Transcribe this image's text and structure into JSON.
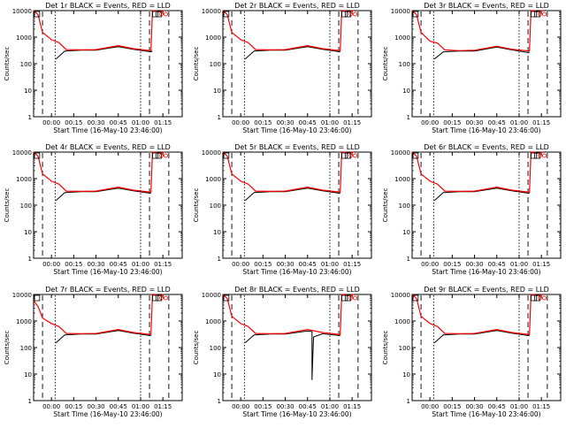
{
  "figure": {
    "shared": {
      "title_suffix": "BLACK = Events, RED = LLD",
      "xlabel": "Start Time (16-May-10 23:46:00)",
      "ylabel": "Counts/sec",
      "x_tick_labels": [
        "00:00",
        "00:15",
        "00:30",
        "00:45",
        "01:00",
        "01:15"
      ],
      "y_tick_labels": [
        "1",
        "10",
        "100",
        "1000",
        "10000"
      ]
    }
  },
  "chart_data": [
    {
      "type": "line",
      "title": "Det 1r BLACK = Events, RED = LLD",
      "xlabel": "Start Time (16-May-10 23:46:00)",
      "ylabel": "Counts/sec",
      "yscale": "log",
      "ylim": [
        1,
        10000
      ],
      "xlim_minutes": [
        -12,
        88
      ],
      "series": [
        {
          "name": "Events",
          "color": "#000000",
          "x": [
            -8,
            3,
            3,
            9,
            9,
            20,
            30,
            45,
            55,
            67,
            68,
            70
          ],
          "y": [
            null,
            150,
            150,
            300,
            300,
            320,
            320,
            440,
            350,
            280,
            300,
            null
          ]
        },
        {
          "name": "LLD",
          "color": "#ff0000",
          "x": [
            -12,
            -9,
            -6,
            0,
            5,
            10,
            20,
            30,
            45,
            55,
            67,
            68,
            70,
            72,
            76
          ],
          "y": [
            10000,
            7000,
            1500,
            800,
            620,
            340,
            330,
            340,
            480,
            370,
            310,
            10000,
            12000,
            9000,
            12000
          ]
        }
      ]
    },
    {
      "type": "line",
      "title": "Det 2r BLACK = Events, RED = LLD",
      "xlabel": "Start Time (16-May-10 23:46:00)",
      "ylabel": "Counts/sec",
      "yscale": "log",
      "ylim": [
        1,
        10000
      ],
      "xlim_minutes": [
        -12,
        88
      ],
      "series": [
        {
          "name": "Events",
          "color": "#000000",
          "x": [
            3,
            9,
            20,
            30,
            45,
            55,
            67
          ],
          "y": [
            150,
            300,
            320,
            320,
            440,
            350,
            280
          ]
        },
        {
          "name": "LLD",
          "color": "#ff0000",
          "x": [
            -12,
            -9,
            -6,
            0,
            5,
            10,
            20,
            30,
            45,
            55,
            67,
            68,
            70,
            72,
            76
          ],
          "y": [
            10000,
            7000,
            1500,
            800,
            620,
            340,
            330,
            340,
            480,
            370,
            310,
            10000,
            12000,
            9000,
            12000
          ]
        }
      ]
    },
    {
      "type": "line",
      "title": "Det 3r BLACK = Events, RED = LLD",
      "xlabel": "Start Time (16-May-10 23:46:00)",
      "ylabel": "Counts/sec",
      "yscale": "log",
      "ylim": [
        1,
        10000
      ],
      "xlim_minutes": [
        -12,
        88
      ],
      "series": [
        {
          "name": "Events",
          "color": "#000000",
          "x": [
            3,
            9,
            20,
            30,
            45,
            55,
            67
          ],
          "y": [
            150,
            280,
            300,
            300,
            420,
            330,
            260
          ]
        },
        {
          "name": "LLD",
          "color": "#ff0000",
          "x": [
            -12,
            -9,
            -6,
            0,
            5,
            10,
            20,
            30,
            45,
            55,
            67,
            68,
            70,
            72,
            76
          ],
          "y": [
            10000,
            7000,
            1500,
            700,
            600,
            330,
            310,
            320,
            450,
            350,
            300,
            10000,
            12000,
            9000,
            12000
          ]
        }
      ]
    },
    {
      "type": "line",
      "title": "Det 4r BLACK = Events, RED = LLD",
      "xlabel": "Start Time (16-May-10 23:46:00)",
      "ylabel": "Counts/sec",
      "yscale": "log",
      "ylim": [
        1,
        10000
      ],
      "xlim_minutes": [
        -12,
        88
      ],
      "series": [
        {
          "name": "Events",
          "color": "#000000",
          "x": [
            3,
            9,
            20,
            30,
            45,
            55,
            67
          ],
          "y": [
            150,
            300,
            320,
            320,
            440,
            350,
            280
          ]
        },
        {
          "name": "LLD",
          "color": "#ff0000",
          "x": [
            -12,
            -9,
            -6,
            0,
            5,
            10,
            20,
            30,
            45,
            55,
            67,
            68,
            70,
            72,
            76
          ],
          "y": [
            10000,
            7000,
            1500,
            800,
            620,
            340,
            330,
            340,
            480,
            370,
            310,
            10000,
            12000,
            9000,
            12000
          ]
        }
      ]
    },
    {
      "type": "line",
      "title": "Det 5r BLACK = Events, RED = LLD",
      "xlabel": "Start Time (16-May-10 23:46:00)",
      "ylabel": "Counts/sec",
      "yscale": "log",
      "ylim": [
        1,
        10000
      ],
      "xlim_minutes": [
        -12,
        88
      ],
      "series": [
        {
          "name": "Events",
          "color": "#000000",
          "x": [
            3,
            9,
            20,
            30,
            45,
            55,
            67
          ],
          "y": [
            150,
            300,
            320,
            320,
            440,
            350,
            280
          ]
        },
        {
          "name": "LLD",
          "color": "#ff0000",
          "x": [
            -12,
            -9,
            -6,
            0,
            5,
            10,
            20,
            30,
            45,
            55,
            67,
            68,
            70,
            72,
            76
          ],
          "y": [
            10000,
            7000,
            1500,
            800,
            620,
            340,
            330,
            340,
            480,
            370,
            310,
            10000,
            12000,
            9000,
            12000
          ]
        }
      ]
    },
    {
      "type": "line",
      "title": "Det 6r BLACK = Events, RED = LLD",
      "xlabel": "Start Time (16-May-10 23:46:00)",
      "ylabel": "Counts/sec",
      "yscale": "log",
      "ylim": [
        1,
        10000
      ],
      "xlim_minutes": [
        -12,
        88
      ],
      "series": [
        {
          "name": "Events",
          "color": "#000000",
          "x": [
            3,
            9,
            20,
            30,
            45,
            55,
            67
          ],
          "y": [
            150,
            300,
            320,
            320,
            440,
            350,
            280
          ]
        },
        {
          "name": "LLD",
          "color": "#ff0000",
          "x": [
            -12,
            -9,
            -6,
            0,
            5,
            10,
            20,
            30,
            45,
            55,
            67,
            68,
            70,
            72,
            76
          ],
          "y": [
            10000,
            7000,
            1500,
            800,
            620,
            340,
            330,
            340,
            480,
            370,
            310,
            10000,
            12000,
            9000,
            12000
          ]
        }
      ]
    },
    {
      "type": "line",
      "title": "Det 7r BLACK = Events, RED = LLD",
      "xlabel": "Start Time (16-May-10 23:46:00)",
      "ylabel": "Counts/sec",
      "yscale": "log",
      "ylim": [
        1,
        10000
      ],
      "xlim_minutes": [
        -12,
        88
      ],
      "series": [
        {
          "name": "Events",
          "color": "#000000",
          "x": [
            3,
            9,
            20,
            30,
            45,
            55,
            67
          ],
          "y": [
            150,
            300,
            320,
            320,
            440,
            350,
            280
          ]
        },
        {
          "name": "LLD",
          "color": "#ff0000",
          "x": [
            -12,
            -9,
            -6,
            0,
            5,
            10,
            20,
            30,
            45,
            55,
            67,
            68,
            70,
            72,
            76
          ],
          "y": [
            6000,
            3500,
            1300,
            800,
            620,
            340,
            330,
            340,
            480,
            370,
            310,
            10000,
            12000,
            9000,
            12000
          ]
        }
      ]
    },
    {
      "type": "line",
      "title": "Det 8r BLACK = Events, RED = LLD",
      "xlabel": "Start Time (16-May-10 23:46:00)",
      "ylabel": "Counts/sec",
      "yscale": "log",
      "ylim": [
        1,
        10000
      ],
      "xlim_minutes": [
        -12,
        88
      ],
      "series": [
        {
          "name": "Events",
          "color": "#000000",
          "x": [
            3,
            9,
            20,
            30,
            45,
            48,
            48,
            49,
            55,
            67
          ],
          "y": [
            150,
            300,
            320,
            320,
            420,
            400,
            6,
            250,
            330,
            280
          ]
        },
        {
          "name": "LLD",
          "color": "#ff0000",
          "x": [
            -12,
            -9,
            -6,
            0,
            5,
            10,
            20,
            30,
            45,
            55,
            67,
            68,
            70,
            72,
            76
          ],
          "y": [
            10000,
            7000,
            1500,
            800,
            620,
            340,
            330,
            340,
            480,
            370,
            310,
            10000,
            12000,
            9000,
            12000
          ]
        }
      ]
    },
    {
      "type": "line",
      "title": "Det 9r BLACK = Events, RED = LLD",
      "xlabel": "Start Time (16-May-10 23:46:00)",
      "ylabel": "Counts/sec",
      "yscale": "log",
      "ylim": [
        1,
        10000
      ],
      "xlim_minutes": [
        -12,
        88
      ],
      "series": [
        {
          "name": "Events",
          "color": "#000000",
          "x": [
            3,
            9,
            20,
            30,
            45,
            55,
            67
          ],
          "y": [
            150,
            300,
            320,
            320,
            440,
            350,
            280
          ]
        },
        {
          "name": "LLD",
          "color": "#ff0000",
          "x": [
            -12,
            -9,
            -6,
            0,
            5,
            10,
            20,
            30,
            45,
            55,
            67,
            68,
            70,
            72,
            76
          ],
          "y": [
            10000,
            7000,
            1500,
            800,
            620,
            340,
            330,
            340,
            480,
            370,
            310,
            10000,
            12000,
            9000,
            12000
          ]
        }
      ]
    }
  ]
}
